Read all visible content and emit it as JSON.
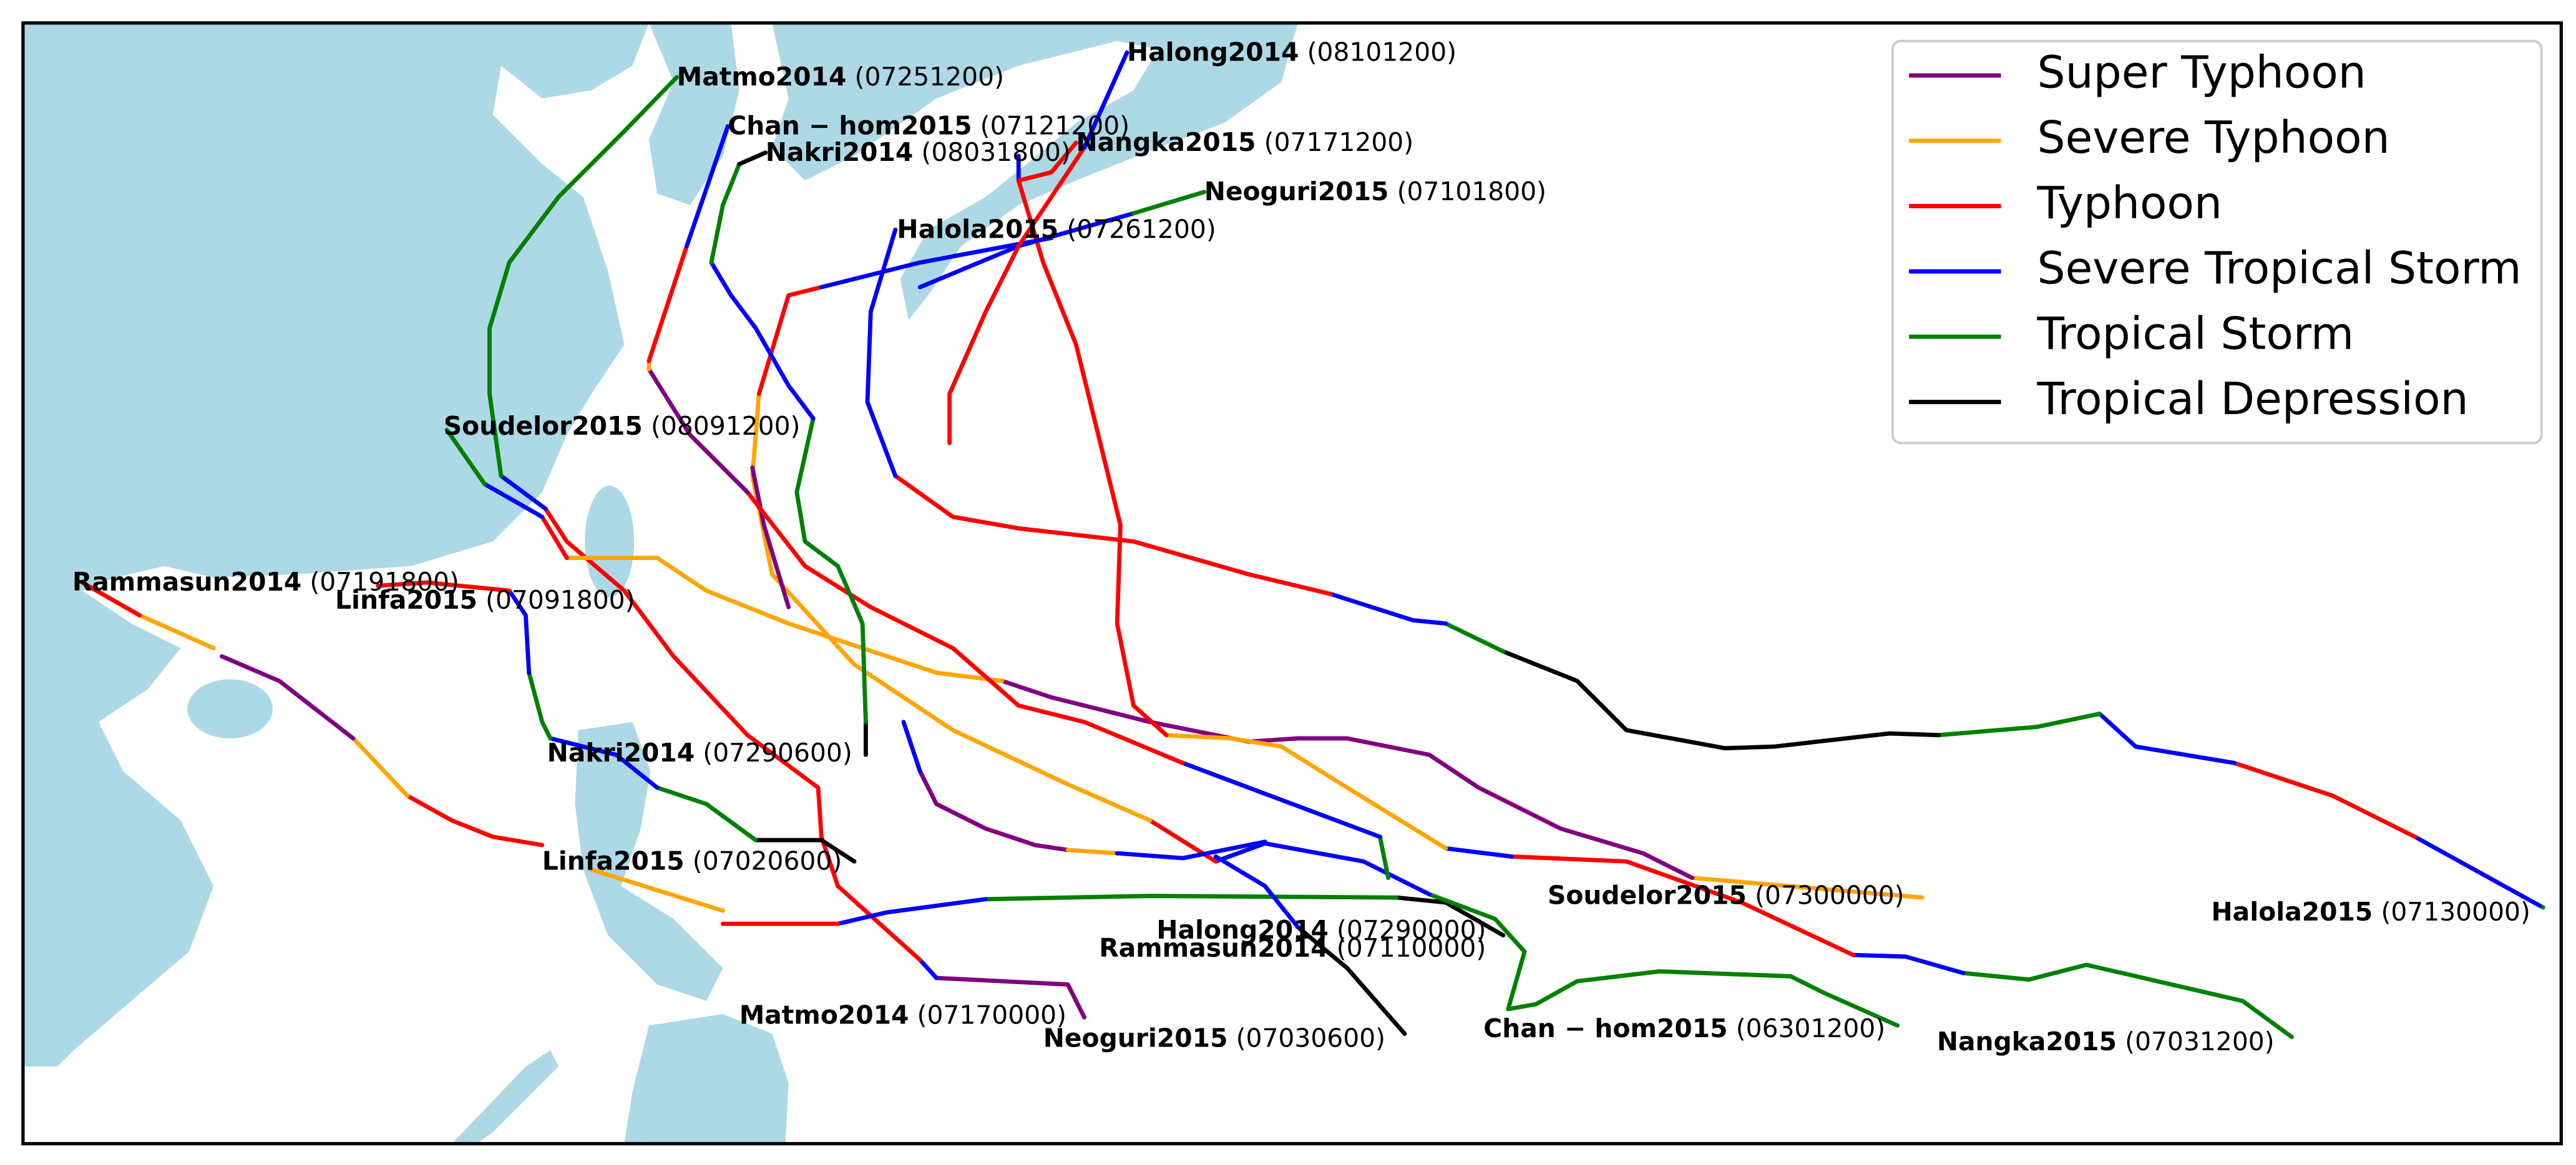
{
  "legend": {
    "items": [
      {
        "label": "Super Typhoon",
        "color": "#800080"
      },
      {
        "label": "Severe Typhoon",
        "color": "#ffa500"
      },
      {
        "label": "Typhoon",
        "color": "#ff0000"
      },
      {
        "label": "Severe Tropical Storm",
        "color": "#0000ff"
      },
      {
        "label": "Tropical Storm",
        "color": "#008000"
      },
      {
        "label": "Tropical Depression",
        "color": "#000000"
      }
    ]
  },
  "labels": [
    {
      "name": "Matmo2014",
      "time": "(07251200)"
    },
    {
      "name": "Halong2014",
      "time": "(08101200)"
    },
    {
      "name": "Chan − hom2015",
      "time": "(07121200)"
    },
    {
      "name": "Nangka2015",
      "time": "(07171200)"
    },
    {
      "name": "Nakri2014",
      "time": "(08031800)"
    },
    {
      "name": "Neoguri2015",
      "time": "(07101800)"
    },
    {
      "name": "Halola2015",
      "time": "(07261200)"
    },
    {
      "name": "Soudelor2015",
      "time": "(08091200)"
    },
    {
      "name": "Rammasun2014",
      "time": "(07191800)"
    },
    {
      "name": "Linfa2015",
      "time": "(07091800)"
    },
    {
      "name": "Nakri2014",
      "time": "(07290600)"
    },
    {
      "name": "Linfa2015",
      "time": "(07020600)"
    },
    {
      "name": "Soudelor2015",
      "time": "(07300000)"
    },
    {
      "name": "Halola2015",
      "time": "(07130000)"
    },
    {
      "name": "Halong2014",
      "time": "(07290000)"
    },
    {
      "name": "Rammasun2014",
      "time": "(07110000)"
    },
    {
      "name": "Matmo2014",
      "time": "(07170000)"
    },
    {
      "name": "Neoguri2015",
      "time": "(07030600)"
    },
    {
      "name": "Chan − hom2015",
      "time": "(06301200)"
    },
    {
      "name": "Nangka2015",
      "time": "(07031200)"
    }
  ]
}
